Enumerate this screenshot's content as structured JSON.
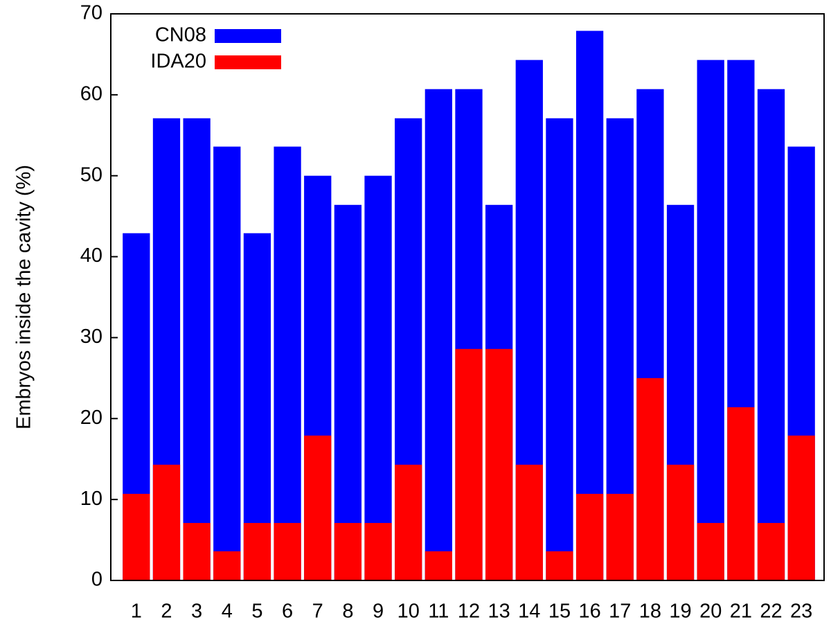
{
  "chart_data": {
    "type": "bar",
    "overlay": true,
    "y_label": "Embryos inside the cavity (%)",
    "categories": [
      "1",
      "2",
      "3",
      "4",
      "5",
      "6",
      "7",
      "8",
      "9",
      "10",
      "11",
      "12",
      "13",
      "14",
      "15",
      "16",
      "17",
      "18",
      "19",
      "20",
      "21",
      "22",
      "23"
    ],
    "series": [
      {
        "name": "CN08",
        "color": "#0000ff",
        "values": [
          42.9,
          57.1,
          57.1,
          53.6,
          42.9,
          53.6,
          50,
          46.4,
          50,
          57.1,
          60.7,
          60.7,
          46.4,
          64.3,
          57.1,
          67.9,
          57.1,
          60.7,
          46.4,
          64.3,
          64.3,
          60.7,
          53.6
        ]
      },
      {
        "name": "IDA20",
        "color": "#ff0000",
        "values": [
          10.7,
          14.3,
          7.1,
          3.6,
          7.1,
          7.1,
          17.9,
          7.1,
          7.1,
          14.3,
          3.6,
          28.6,
          28.6,
          14.3,
          3.6,
          10.7,
          10.7,
          25,
          14.3,
          7.1,
          21.4,
          7.1,
          17.9
        ]
      }
    ],
    "ylim": [
      0,
      70
    ],
    "yticks": [
      0,
      10,
      20,
      30,
      40,
      50,
      60,
      70
    ],
    "grid": false,
    "legend": "top-left"
  }
}
